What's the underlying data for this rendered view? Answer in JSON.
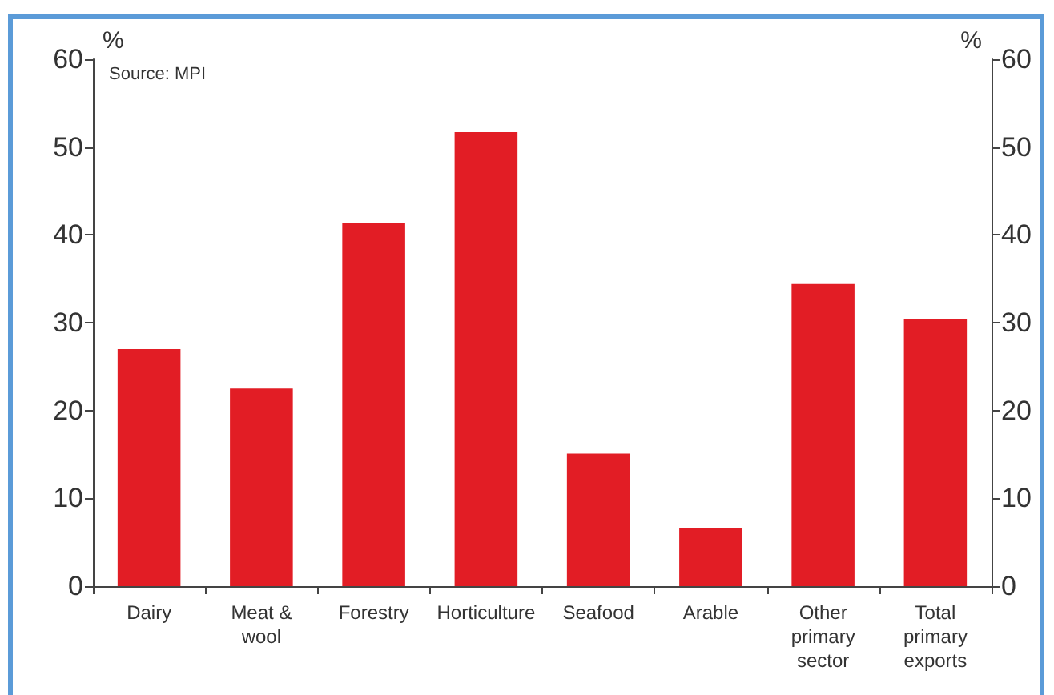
{
  "chart_data": {
    "type": "bar",
    "ylabel": "%",
    "y2label": "%",
    "annotations": [
      "Source: MPI"
    ],
    "categories": [
      "Dairy",
      "Meat & wool",
      "Forestry",
      "Horticulture",
      "Seafood",
      "Arable",
      "Other primary sector",
      "Total primary exports"
    ],
    "values": [
      27,
      22.5,
      41.3,
      51.7,
      15.1,
      6.6,
      34.4,
      30.4
    ],
    "color": "#e21d25",
    "ylim": [
      0,
      60
    ],
    "yticks": [
      0,
      10,
      20,
      30,
      40,
      50,
      60
    ],
    "y2lim": [
      0,
      60
    ],
    "y2ticks": [
      0,
      10,
      20,
      30,
      40,
      50,
      60
    ]
  }
}
